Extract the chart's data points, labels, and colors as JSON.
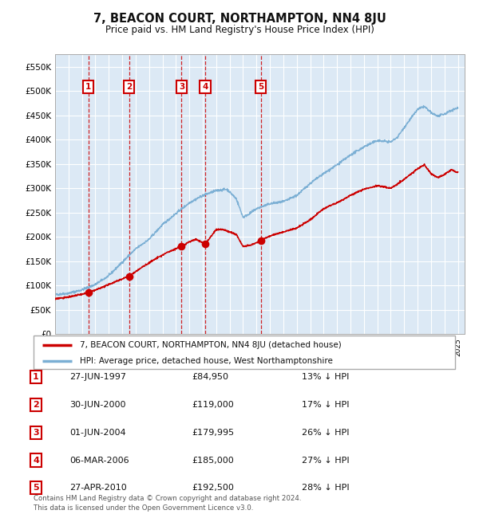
{
  "title": "7, BEACON COURT, NORTHAMPTON, NN4 8JU",
  "subtitle": "Price paid vs. HM Land Registry's House Price Index (HPI)",
  "background_color": "#dce9f5",
  "ylim": [
    0,
    575000
  ],
  "yticks": [
    0,
    50000,
    100000,
    150000,
    200000,
    250000,
    300000,
    350000,
    400000,
    450000,
    500000,
    550000
  ],
  "ytick_labels": [
    "£0",
    "£50K",
    "£100K",
    "£150K",
    "£200K",
    "£250K",
    "£300K",
    "£350K",
    "£400K",
    "£450K",
    "£500K",
    "£550K"
  ],
  "xlim_start": 1995.0,
  "xlim_end": 2025.5,
  "sale_dates_decimal": [
    1997.49,
    2000.5,
    2004.42,
    2006.18,
    2010.32
  ],
  "sale_prices": [
    84950,
    119000,
    179995,
    185000,
    192500
  ],
  "sale_labels": [
    "1",
    "2",
    "3",
    "4",
    "5"
  ],
  "sale_date_strs": [
    "27-JUN-1997",
    "30-JUN-2000",
    "01-JUN-2004",
    "06-MAR-2006",
    "27-APR-2010"
  ],
  "sale_price_strs": [
    "£84,950",
    "£119,000",
    "£179,995",
    "£185,000",
    "£192,500"
  ],
  "sale_hpi_pcts": [
    "13% ↓ HPI",
    "17% ↓ HPI",
    "26% ↓ HPI",
    "27% ↓ HPI",
    "28% ↓ HPI"
  ],
  "legend_house_label": "7, BEACON COURT, NORTHAMPTON, NN4 8JU (detached house)",
  "legend_hpi_label": "HPI: Average price, detached house, West Northamptonshire",
  "footer_line1": "Contains HM Land Registry data © Crown copyright and database right 2024.",
  "footer_line2": "This data is licensed under the Open Government Licence v3.0.",
  "house_line_color": "#cc0000",
  "hpi_line_color": "#7bafd4",
  "sale_marker_color": "#cc0000",
  "vline_color": "#cc0000",
  "hpi_keypoints_x": [
    1995.0,
    1996.0,
    1997.0,
    1998.0,
    1999.0,
    2000.0,
    2001.0,
    2002.0,
    2003.0,
    2004.0,
    2005.0,
    2006.0,
    2007.0,
    2007.8,
    2008.5,
    2009.0,
    2009.5,
    2010.0,
    2011.0,
    2012.0,
    2013.0,
    2014.0,
    2015.0,
    2016.0,
    2017.0,
    2018.0,
    2019.0,
    2020.0,
    2020.5,
    2021.0,
    2022.0,
    2022.5,
    2023.0,
    2023.5,
    2024.0,
    2024.5,
    2025.0
  ],
  "hpi_keypoints_y": [
    81000,
    84000,
    91000,
    102000,
    120000,
    148000,
    175000,
    195000,
    225000,
    248000,
    270000,
    285000,
    295000,
    298000,
    278000,
    240000,
    248000,
    258000,
    268000,
    272000,
    285000,
    310000,
    330000,
    348000,
    368000,
    385000,
    398000,
    395000,
    405000,
    425000,
    462000,
    468000,
    455000,
    448000,
    452000,
    460000,
    465000
  ],
  "house_keypoints_x": [
    1995.0,
    1996.0,
    1997.0,
    1997.49,
    1998.5,
    1999.5,
    2000.5,
    2001.5,
    2002.5,
    2003.5,
    2004.42,
    2005.0,
    2005.5,
    2006.18,
    2007.0,
    2007.5,
    2008.0,
    2008.5,
    2009.0,
    2009.5,
    2010.0,
    2010.32,
    2011.0,
    2012.0,
    2013.0,
    2014.0,
    2015.0,
    2016.0,
    2017.0,
    2018.0,
    2019.0,
    2020.0,
    2021.0,
    2022.0,
    2022.5,
    2023.0,
    2023.5,
    2024.0,
    2024.5,
    2025.0
  ],
  "house_keypoints_y": [
    73000,
    76000,
    82000,
    84950,
    96000,
    108000,
    119000,
    138000,
    155000,
    170000,
    179995,
    190000,
    195000,
    185000,
    215000,
    215000,
    210000,
    205000,
    180000,
    182000,
    188000,
    192500,
    202000,
    210000,
    218000,
    235000,
    258000,
    270000,
    285000,
    298000,
    305000,
    300000,
    318000,
    340000,
    348000,
    330000,
    322000,
    328000,
    338000,
    332000
  ]
}
